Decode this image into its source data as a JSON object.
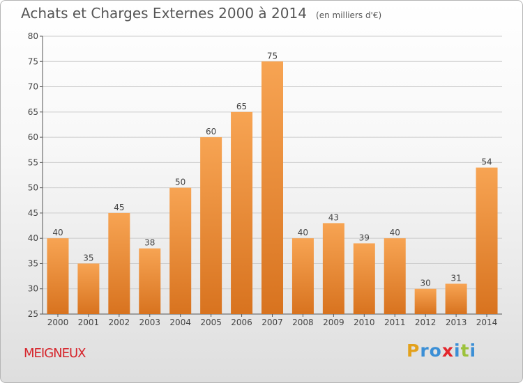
{
  "title": "Achats et Charges Externes 2000 à 2014",
  "subtitle": "(en milliers d'€)",
  "location": "MEIGNEUX",
  "brand": "Proxiti",
  "colors": {
    "bar_light": "#f7a453",
    "bar_dark": "#d8731f",
    "axis": "#555555",
    "grid": "#cccccc",
    "location": "#d6242b",
    "brand_letters": [
      "#e3a11c",
      "#3b8fd6",
      "#3b8fd6",
      "#e3262c",
      "#3b8fd6",
      "#9cc23b",
      "#3b8fd6"
    ]
  },
  "chart_data": {
    "type": "bar",
    "categories": [
      "2000",
      "2001",
      "2002",
      "2003",
      "2004",
      "2005",
      "2006",
      "2007",
      "2008",
      "2009",
      "2010",
      "2011",
      "2012",
      "2013",
      "2014"
    ],
    "values": [
      40,
      35,
      45,
      38,
      50,
      60,
      65,
      75,
      40,
      43,
      39,
      40,
      30,
      31,
      54
    ],
    "ylim": [
      25,
      80
    ],
    "yticks": [
      25,
      30,
      35,
      40,
      45,
      50,
      55,
      60,
      65,
      70,
      75,
      80
    ],
    "grid": true,
    "legend": "none"
  }
}
